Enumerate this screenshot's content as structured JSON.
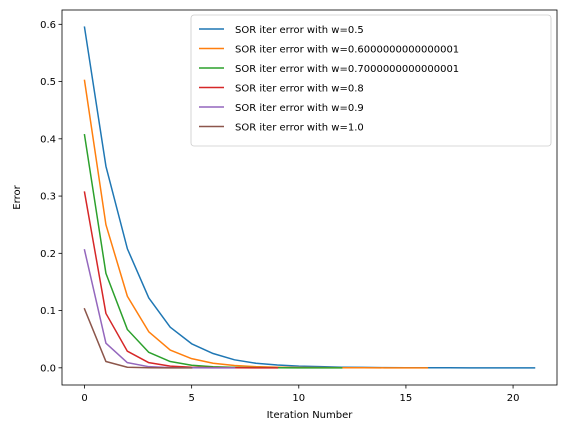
{
  "chart_data": {
    "type": "line",
    "title": "",
    "xlabel": "Iteration Number",
    "ylabel": "Error",
    "xlim": [
      -1.05,
      22.05
    ],
    "ylim": [
      -0.03,
      0.625
    ],
    "xticks": [
      0,
      5,
      10,
      15,
      20
    ],
    "yticks": [
      0.0,
      0.1,
      0.2,
      0.3,
      0.4,
      0.5,
      0.6
    ],
    "xtick_labels": [
      "0",
      "5",
      "10",
      "15",
      "20"
    ],
    "ytick_labels": [
      "0.0",
      "0.1",
      "0.2",
      "0.3",
      "0.4",
      "0.5",
      "0.6"
    ],
    "grid": false,
    "legend_position": "top-right",
    "series": [
      {
        "name": "SOR iter error with w=0.5",
        "color": "#1f77b4",
        "x": [
          0,
          1,
          2,
          3,
          4,
          5,
          6,
          7,
          8,
          9,
          10,
          11,
          12,
          13,
          14,
          15,
          16,
          17,
          18,
          19,
          20,
          21
        ],
        "y": [
          0.595,
          0.352,
          0.208,
          0.122,
          0.071,
          0.042,
          0.025,
          0.014,
          0.008,
          0.005,
          0.003,
          0.002,
          0.001,
          0.0007,
          0.0004,
          0.0002,
          0.0001,
          0.0001,
          0.0,
          0.0,
          0.0,
          0.0
        ]
      },
      {
        "name": "SOR iter error with w=0.6000000000000001",
        "color": "#ff7f0e",
        "x": [
          0,
          1,
          2,
          3,
          4,
          5,
          6,
          7,
          8,
          9,
          10,
          11,
          12,
          13,
          14,
          15,
          16
        ],
        "y": [
          0.502,
          0.25,
          0.125,
          0.063,
          0.031,
          0.016,
          0.008,
          0.004,
          0.002,
          0.001,
          0.0005,
          0.0003,
          0.0001,
          0.0001,
          0.0,
          0.0,
          0.0
        ]
      },
      {
        "name": "SOR iter error with w=0.7000000000000001",
        "color": "#2ca02c",
        "x": [
          0,
          1,
          2,
          3,
          4,
          5,
          6,
          7,
          8,
          9,
          10,
          11,
          12
        ],
        "y": [
          0.407,
          0.165,
          0.067,
          0.027,
          0.011,
          0.0045,
          0.0018,
          0.0007,
          0.0003,
          0.0001,
          0.0,
          0.0,
          0.0
        ]
      },
      {
        "name": "SOR iter error with w=0.8",
        "color": "#d62728",
        "x": [
          0,
          1,
          2,
          3,
          4,
          5,
          6,
          7,
          8,
          9
        ],
        "y": [
          0.307,
          0.095,
          0.029,
          0.009,
          0.003,
          0.001,
          0.0003,
          0.0001,
          0.0,
          0.0
        ]
      },
      {
        "name": "SOR iter error with w=0.9",
        "color": "#9467bd",
        "x": [
          0,
          1,
          2,
          3,
          4,
          5,
          6,
          7
        ],
        "y": [
          0.206,
          0.043,
          0.009,
          0.002,
          0.0004,
          0.0001,
          0.0,
          0.0
        ]
      },
      {
        "name": "SOR iter error with w=1.0",
        "color": "#8c564b",
        "x": [
          0,
          1,
          2,
          3,
          4,
          5
        ],
        "y": [
          0.103,
          0.011,
          0.001,
          0.0001,
          0.0,
          0.0
        ]
      }
    ]
  }
}
